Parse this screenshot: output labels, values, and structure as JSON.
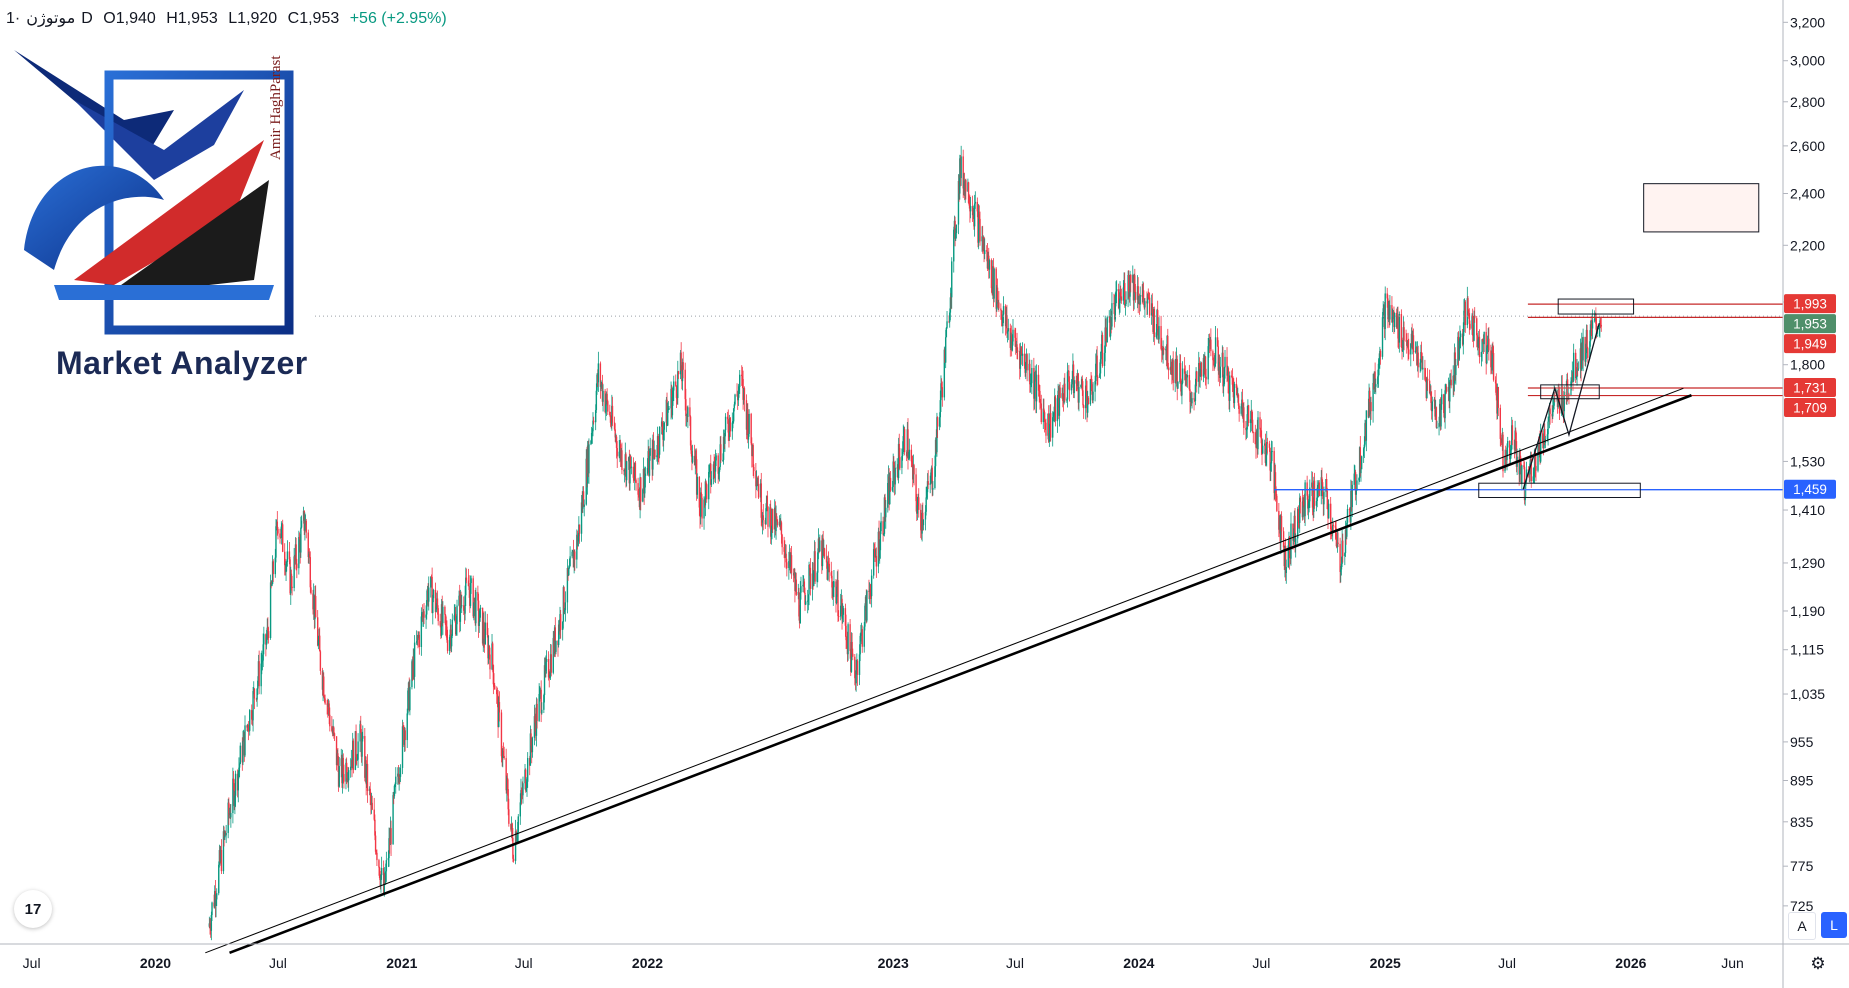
{
  "header": {
    "symbol": "موتوژن",
    "separator": "·",
    "interval": "1D",
    "open": "O1,940",
    "high": "H1,953",
    "low": "L1,920",
    "close": "C1,953",
    "change": "+56 (+2.95%)"
  },
  "logo": {
    "name": "Market Analyzer",
    "signature": "Amir HaghParast"
  },
  "badges": {
    "tv_logo": "17",
    "auto_scale": "A",
    "log_scale": "L"
  },
  "colors": {
    "up": "#089981",
    "down": "#f23645",
    "support_line": "#2962ff",
    "resistance_line": "#c62828",
    "last_price": "#4f8f6a",
    "trendline": "#000000"
  },
  "chart_data": {
    "type": "candlestick",
    "scale": "log",
    "ylim": [
      680,
      3300
    ],
    "y_ticks": [
      725,
      775,
      835,
      895,
      955,
      1035,
      1115,
      1190,
      1290,
      1410,
      1530,
      1800,
      2000,
      2200,
      2400,
      2600,
      2800,
      3000,
      3200
    ],
    "y_tick_labels": [
      "725",
      "775",
      "835",
      "895",
      "955",
      "1,035",
      "1,115",
      "1,190",
      "1,290",
      "1,410",
      "1,530",
      "1,800",
      "",
      "2,200",
      "2,400",
      "2,600",
      "2,800",
      "3,000",
      "3,200"
    ],
    "x_range": [
      "2019-05-15",
      "2026-08-15"
    ],
    "x_ticks": [
      {
        "date": "2019-07-01",
        "label": "Jul"
      },
      {
        "date": "2020-01-01",
        "label": "2020"
      },
      {
        "date": "2020-07-01",
        "label": "Jul"
      },
      {
        "date": "2021-01-01",
        "label": "2021"
      },
      {
        "date": "2021-07-01",
        "label": "Jul"
      },
      {
        "date": "2022-01-01",
        "label": "2022"
      },
      {
        "date": "2023-01-01",
        "label": "2023"
      },
      {
        "date": "2023-07-01",
        "label": "Jul"
      },
      {
        "date": "2024-01-01",
        "label": "2024"
      },
      {
        "date": "2024-07-01",
        "label": "Jul"
      },
      {
        "date": "2025-01-01",
        "label": "2025"
      },
      {
        "date": "2025-07-01",
        "label": "Jul"
      },
      {
        "date": "2026-01-01",
        "label": "2026"
      },
      {
        "date": "2026-06-01",
        "label": "Jun"
      }
    ],
    "price_path": [
      [
        "2020-03-20",
        700
      ],
      [
        "2020-04-20",
        850
      ],
      [
        "2020-05-20",
        1000
      ],
      [
        "2020-06-15",
        1140
      ],
      [
        "2020-07-01",
        1390
      ],
      [
        "2020-07-20",
        1250
      ],
      [
        "2020-08-10",
        1390
      ],
      [
        "2020-09-01",
        1100
      ],
      [
        "2020-10-01",
        900
      ],
      [
        "2020-11-01",
        960
      ],
      [
        "2020-12-05",
        740
      ],
      [
        "2020-12-25",
        900
      ],
      [
        "2021-01-20",
        1100
      ],
      [
        "2021-02-10",
        1240
      ],
      [
        "2021-03-10",
        1140
      ],
      [
        "2021-04-10",
        1240
      ],
      [
        "2021-05-15",
        1100
      ],
      [
        "2021-06-15",
        800
      ],
      [
        "2021-07-20",
        1000
      ],
      [
        "2021-08-20",
        1150
      ],
      [
        "2021-09-20",
        1350
      ],
      [
        "2021-10-20",
        1770
      ],
      [
        "2021-11-20",
        1560
      ],
      [
        "2021-12-20",
        1460
      ],
      [
        "2022-01-20",
        1600
      ],
      [
        "2022-02-20",
        1790
      ],
      [
        "2022-03-20",
        1420
      ],
      [
        "2022-04-20",
        1560
      ],
      [
        "2022-05-20",
        1750
      ],
      [
        "2022-06-20",
        1420
      ],
      [
        "2022-07-20",
        1350
      ],
      [
        "2022-08-15",
        1200
      ],
      [
        "2022-09-15",
        1320
      ],
      [
        "2022-10-15",
        1200
      ],
      [
        "2022-11-05",
        1070
      ],
      [
        "2022-12-01",
        1270
      ],
      [
        "2022-12-25",
        1450
      ],
      [
        "2023-01-20",
        1600
      ],
      [
        "2023-02-10",
        1380
      ],
      [
        "2023-03-01",
        1500
      ],
      [
        "2023-03-20",
        1850
      ],
      [
        "2023-04-10",
        2500
      ],
      [
        "2023-04-25",
        2400
      ],
      [
        "2023-05-20",
        2150
      ],
      [
        "2023-06-20",
        1900
      ],
      [
        "2023-07-20",
        1800
      ],
      [
        "2023-08-20",
        1620
      ],
      [
        "2023-09-20",
        1760
      ],
      [
        "2023-10-20",
        1700
      ],
      [
        "2023-11-20",
        1950
      ],
      [
        "2023-12-20",
        2080
      ],
      [
        "2024-01-20",
        1960
      ],
      [
        "2024-02-20",
        1800
      ],
      [
        "2024-03-20",
        1710
      ],
      [
        "2024-04-20",
        1850
      ],
      [
        "2024-05-20",
        1720
      ],
      [
        "2024-06-20",
        1620
      ],
      [
        "2024-07-15",
        1540
      ],
      [
        "2024-08-05",
        1300
      ],
      [
        "2024-09-05",
        1440
      ],
      [
        "2024-10-05",
        1450
      ],
      [
        "2024-10-25",
        1290
      ],
      [
        "2024-11-20",
        1500
      ],
      [
        "2024-12-20",
        1800
      ],
      [
        "2025-01-01",
        1980
      ],
      [
        "2025-01-25",
        1900
      ],
      [
        "2025-02-20",
        1820
      ],
      [
        "2025-03-20",
        1640
      ],
      [
        "2025-04-10",
        1760
      ],
      [
        "2025-05-01",
        1970
      ],
      [
        "2025-05-20",
        1880
      ],
      [
        "2025-06-10",
        1820
      ],
      [
        "2025-06-25",
        1550
      ],
      [
        "2025-07-10",
        1600
      ],
      [
        "2025-07-25",
        1470
      ],
      [
        "2025-08-15",
        1550
      ],
      [
        "2025-09-05",
        1660
      ],
      [
        "2025-09-25",
        1720
      ],
      [
        "2025-10-15",
        1820
      ],
      [
        "2025-11-01",
        1880
      ],
      [
        "2025-11-18",
        1953
      ]
    ]
  },
  "drawings": {
    "price_labels": [
      {
        "price": 1993,
        "text": "1,993",
        "kind": "resistance"
      },
      {
        "price": 1953,
        "text": "1,953",
        "kind": "last"
      },
      {
        "price": 1949,
        "text": "1,949",
        "kind": "resistance"
      },
      {
        "price": 1731,
        "text": "1,731",
        "kind": "resistance"
      },
      {
        "price": 1709,
        "text": "1,709",
        "kind": "resistance"
      },
      {
        "price": 1459,
        "text": "1,459",
        "kind": "support"
      }
    ],
    "support_start": "2024-07-20",
    "resistance_start": "2025-08-01",
    "trendline_thick": [
      [
        "2020-04-20",
        670
      ],
      [
        "2026-04-01",
        1710
      ]
    ],
    "trendline_thin": [
      [
        "2020-03-15",
        670
      ],
      [
        "2026-03-20",
        1730
      ]
    ],
    "boxes": [
      {
        "date_from": "2025-05-20",
        "date_to": "2026-01-15",
        "price_from": 1440,
        "price_to": 1475
      },
      {
        "date_from": "2025-08-20",
        "date_to": "2025-11-15",
        "price_from": 1700,
        "price_to": 1740
      },
      {
        "date_from": "2025-09-15",
        "date_to": "2026-01-05",
        "price_from": 1960,
        "price_to": 2010
      },
      {
        "date_from": "2026-01-20",
        "date_to": "2026-07-10",
        "price_from": 2250,
        "price_to": 2440
      }
    ],
    "zigzag": [
      [
        "2025-07-25",
        1460
      ],
      [
        "2025-09-10",
        1730
      ],
      [
        "2025-10-01",
        1600
      ],
      [
        "2025-11-15",
        1930
      ]
    ]
  }
}
